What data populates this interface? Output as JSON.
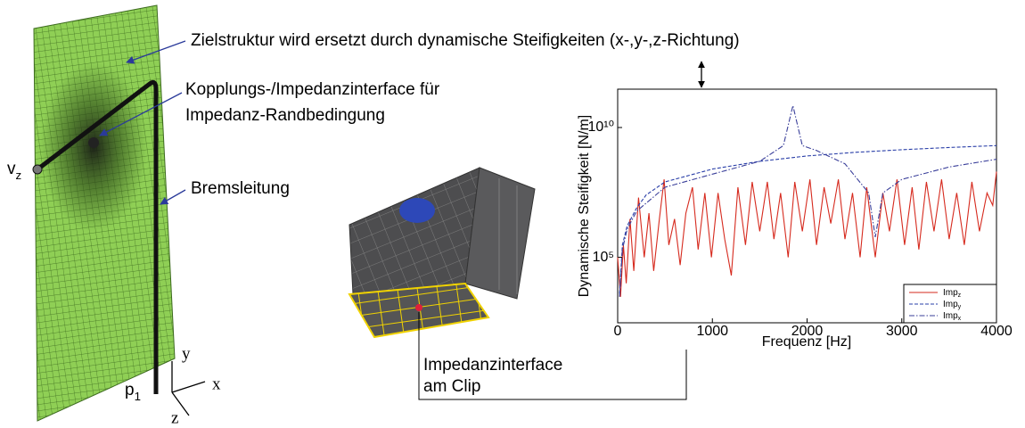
{
  "labels": {
    "target": "Zielstruktur wird ersetzt durch dynamische Steifigkeiten (x-,y-,z-Richtung)",
    "coupling_line1": "Kopplungs-/Impedanzinterface für",
    "coupling_line2": "Impedanz-Randbedingung",
    "brake_line": "Bremsleitung",
    "velocity": "vz",
    "pressure": "p1",
    "axis_y": "y",
    "axis_x": "x",
    "axis_z": "z",
    "clip_line1": "Impedanzinterface",
    "clip_line2": "am Clip"
  },
  "chart_data": {
    "type": "line",
    "y_label": "Dynamische Steifigkeit [N/m]",
    "x_label": "Frequenz [Hz]",
    "log_y": true,
    "xlim": [
      0,
      4000
    ],
    "xticks": [
      0,
      1000,
      2000,
      3000,
      4000
    ],
    "ylim": [
      300,
      300000000000
    ],
    "yticks": [
      {
        "value": 100000,
        "label": "10⁵"
      },
      {
        "value": 10000000000,
        "label": "10¹⁰"
      }
    ],
    "legend": "lower right",
    "series": [
      {
        "name": "Impz",
        "color": "#d62a1e",
        "style": "solid",
        "x": [
          0,
          30,
          60,
          90,
          130,
          170,
          220,
          280,
          330,
          380,
          440,
          490,
          540,
          600,
          660,
          720,
          790,
          850,
          920,
          990,
          1060,
          1130,
          1200,
          1270,
          1350,
          1420,
          1500,
          1580,
          1650,
          1720,
          1800,
          1870,
          1950,
          2030,
          2100,
          2180,
          2250,
          2330,
          2400,
          2480,
          2560,
          2630,
          2720,
          2800,
          2870,
          2950,
          3030,
          3110,
          3180,
          3260,
          3340,
          3420,
          3500,
          3580,
          3660,
          3740,
          3820,
          3900,
          3960,
          4000
        ],
        "values": [
          100000,
          3000,
          300000,
          10000,
          3000000,
          30000,
          20000000,
          100000,
          5000000,
          30000,
          3000000,
          100000000,
          300000,
          3000000,
          50000,
          5000000,
          50000000,
          200000,
          30000000,
          100000,
          30000000,
          500000,
          20000,
          50000000,
          300000,
          80000000,
          1000000,
          80000000,
          500000,
          30000000,
          100000,
          80000000,
          1000000,
          100000000,
          300000,
          50000000,
          2000000,
          100000000,
          500000,
          30000000,
          100000,
          50000000,
          100000,
          30000000,
          1000000,
          100000000,
          300000,
          50000000,
          200000,
          80000000,
          1000000,
          100000000,
          500000,
          30000000,
          300000,
          80000000,
          1000000,
          30000000,
          10000000,
          200000000
        ]
      },
      {
        "name": "Impy",
        "color": "#2a3fa8",
        "style": "dashed",
        "x": [
          20,
          50,
          100,
          200,
          300,
          500,
          1000,
          1500,
          2000,
          2500,
          3000,
          3500,
          4000
        ],
        "values": [
          4000,
          300000,
          1600000,
          8000000,
          25000000,
          80000000,
          250000000,
          500000000,
          800000000,
          1100000000,
          1400000000,
          1700000000,
          2000000000
        ]
      },
      {
        "name": "Impx",
        "color": "#3a3f9a",
        "style": "dashdot",
        "x": [
          20,
          50,
          100,
          200,
          500,
          1000,
          1500,
          1750,
          1850,
          1950,
          2100,
          2400,
          2650,
          2720,
          2800,
          3000,
          3500,
          4000
        ],
        "values": [
          3000,
          200000,
          1200000,
          6000000,
          50000000,
          160000000,
          500000000,
          2000000000,
          70000000000,
          2000000000,
          1300000000,
          400000000,
          30000000,
          600000,
          30000000,
          100000000,
          300000000,
          600000000
        ]
      }
    ]
  }
}
